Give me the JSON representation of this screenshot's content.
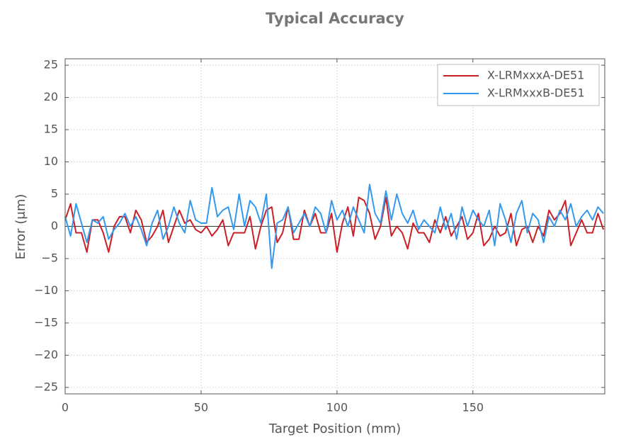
{
  "chart_data": {
    "type": "line",
    "title": "Typical Accuracy",
    "xlabel": "Target Position (mm)",
    "ylabel": "Error (μm)",
    "x": [
      0,
      2,
      4,
      6,
      8,
      10,
      12,
      14,
      16,
      18,
      20,
      22,
      24,
      26,
      28,
      30,
      32,
      34,
      36,
      38,
      40,
      42,
      44,
      46,
      48,
      50,
      52,
      54,
      56,
      58,
      60,
      62,
      64,
      66,
      68,
      70,
      72,
      74,
      76,
      78,
      80,
      82,
      84,
      86,
      88,
      90,
      92,
      94,
      96,
      98,
      100,
      102,
      104,
      106,
      108,
      110,
      112,
      114,
      116,
      118,
      120,
      122,
      124,
      126,
      128,
      130,
      132,
      134,
      136,
      138,
      140,
      142,
      144,
      146,
      148,
      150,
      152,
      154,
      156,
      158,
      160,
      162,
      164,
      166,
      168,
      170,
      172,
      174,
      176,
      178,
      180,
      182,
      184,
      186,
      188,
      190,
      192,
      194,
      196,
      198
    ],
    "series": [
      {
        "name": "X-LRMxxxA-DE51",
        "color": "#cc1f25",
        "values": [
          1,
          3.5,
          -1,
          -1,
          -4,
          1,
          1,
          -1,
          -4,
          0,
          1.5,
          1.5,
          -1,
          2.5,
          1,
          -2.5,
          -1.5,
          0,
          2.5,
          -2.5,
          0,
          2.5,
          0.5,
          1,
          -0.5,
          -1,
          0,
          -1.5,
          -0.5,
          1,
          -3,
          -1,
          -1,
          -1,
          1.5,
          -3.5,
          0,
          2.5,
          3,
          -2.5,
          -1,
          3,
          -2,
          -2,
          2.5,
          0,
          2,
          -1,
          -1,
          2,
          -4,
          0.5,
          3,
          -1.5,
          4.5,
          4,
          2,
          -2,
          0,
          4.5,
          -1.5,
          0,
          -1,
          -3.5,
          0.5,
          -1,
          -1,
          -2.5,
          1,
          -1,
          1.5,
          -1.5,
          0,
          1.5,
          -2,
          -1,
          2,
          -3,
          -2,
          0,
          -1.5,
          -1,
          2,
          -3,
          -0.5,
          0,
          -2.5,
          0,
          -1.5,
          2.5,
          1,
          2,
          4,
          -3,
          -1,
          1,
          -1,
          -1,
          2,
          -0.5
        ]
      },
      {
        "name": "X-LRMxxxB-DE51",
        "color": "#3399ee",
        "values": [
          1.5,
          -1.5,
          3.5,
          0.5,
          -2.5,
          1,
          0.5,
          1.5,
          -2,
          -0.5,
          0.5,
          2,
          0,
          1.5,
          -0.5,
          -3,
          0.5,
          2.5,
          -2,
          0,
          3,
          0.5,
          -1,
          4,
          1,
          0.5,
          0.5,
          6,
          1.5,
          2.5,
          3,
          -0.5,
          5,
          0,
          4,
          3,
          0.5,
          5,
          -6.5,
          0.5,
          1,
          3,
          -1,
          0.5,
          2,
          0,
          3,
          2,
          -1,
          4,
          1,
          2.5,
          0,
          3,
          1,
          -1,
          6.5,
          2,
          0.5,
          5.5,
          1,
          5,
          2,
          0.5,
          2.5,
          -0.5,
          1,
          0,
          -1,
          3,
          -0.5,
          2,
          -2,
          3,
          0,
          2.5,
          1,
          0,
          2.5,
          -3,
          3.5,
          1,
          -2.5,
          2,
          4,
          -1,
          2,
          1,
          -2.5,
          1.5,
          0,
          2.5,
          1,
          3.5,
          0,
          1.5,
          2.5,
          1,
          3,
          2
        ]
      }
    ],
    "xlim": [
      0,
      198.5
    ],
    "ylim": [
      -26,
      26
    ],
    "xticks": [
      0,
      50,
      100,
      150
    ],
    "yticks": [
      {
        "value": -25,
        "label": "−25"
      },
      {
        "value": -20,
        "label": "−20"
      },
      {
        "value": -15,
        "label": "−15"
      },
      {
        "value": -10,
        "label": "−10"
      },
      {
        "value": -5,
        "label": "−5"
      },
      0,
      5,
      10,
      15,
      20,
      25
    ],
    "grid": true,
    "zero_line": true,
    "legend": "upper right"
  }
}
